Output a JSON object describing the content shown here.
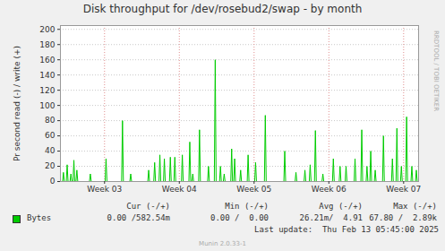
{
  "chart_data": {
    "type": "line",
    "title": "Disk throughput for /dev/rosebud2/swap - by month",
    "y_label": "Pr second read (-) / write (+)",
    "x": [
      2.438,
      2.45,
      2.462,
      2.488,
      2.5,
      2.512,
      2.538,
      2.55,
      2.562,
      2.578,
      2.59,
      2.602,
      2.618,
      2.63,
      2.642,
      2.798,
      2.81,
      2.822,
      3.008,
      3.02,
      3.032,
      3.228,
      3.24,
      3.252,
      3.338,
      3.35,
      3.362,
      3.578,
      3.59,
      3.602,
      3.658,
      3.67,
      3.682,
      3.728,
      3.74,
      3.752,
      3.788,
      3.8,
      3.812,
      3.868,
      3.88,
      3.892,
      3.928,
      3.94,
      3.952,
      4.028,
      4.04,
      4.052,
      4.128,
      4.14,
      4.152,
      4.168,
      4.18,
      4.192,
      4.258,
      4.27,
      4.282,
      4.378,
      4.39,
      4.402,
      4.468,
      4.48,
      4.492,
      4.538,
      4.55,
      4.562,
      4.588,
      4.6,
      4.612,
      4.688,
      4.7,
      4.712,
      4.728,
      4.74,
      4.752,
      4.808,
      4.82,
      4.832,
      4.908,
      4.92,
      4.932,
      5.008,
      5.02,
      5.032,
      5.138,
      5.15,
      5.162,
      5.398,
      5.41,
      5.422,
      5.548,
      5.56,
      5.572,
      5.668,
      5.68,
      5.692,
      5.738,
      5.75,
      5.762,
      5.808,
      5.82,
      5.832,
      5.908,
      5.92,
      5.932,
      6.048,
      6.06,
      6.072,
      6.138,
      6.15,
      6.162,
      6.218,
      6.23,
      6.242,
      6.338,
      6.35,
      6.362,
      6.428,
      6.44,
      6.452,
      6.498,
      6.51,
      6.522,
      6.548,
      6.56,
      6.572,
      6.608,
      6.62,
      6.632,
      6.718,
      6.73,
      6.742,
      6.838,
      6.85,
      6.862,
      6.898,
      6.91,
      6.922,
      6.958,
      6.97,
      6.982,
      7.028,
      7.04,
      7.052,
      7.098,
      7.11,
      7.122,
      7.158,
      7.17,
      7.182
    ],
    "series": [
      {
        "name": "Bytes",
        "color": "#00cc00",
        "values": [
          0,
          12,
          0,
          0,
          22,
          0,
          0,
          10,
          0,
          0,
          28,
          0,
          0,
          15,
          0,
          0,
          10,
          0,
          0,
          30,
          0,
          0,
          80,
          0,
          0,
          10,
          0,
          0,
          15,
          0,
          0,
          25,
          0,
          0,
          35,
          0,
          0,
          30,
          0,
          0,
          32,
          0,
          0,
          32,
          0,
          0,
          35,
          0,
          0,
          52,
          0,
          0,
          10,
          0,
          0,
          68,
          0,
          0,
          20,
          0,
          0,
          160,
          0,
          0,
          20,
          0,
          0,
          10,
          0,
          0,
          43,
          0,
          0,
          30,
          0,
          0,
          15,
          0,
          0,
          35,
          0,
          0,
          25,
          0,
          0,
          87,
          0,
          0,
          40,
          0,
          0,
          12,
          0,
          0,
          15,
          0,
          0,
          22,
          0,
          0,
          67,
          0,
          0,
          10,
          0,
          0,
          30,
          0,
          0,
          20,
          0,
          0,
          20,
          0,
          0,
          30,
          0,
          0,
          68,
          0,
          0,
          20,
          0,
          0,
          40,
          0,
          0,
          15,
          0,
          0,
          60,
          0,
          0,
          30,
          0,
          0,
          70,
          0,
          0,
          20,
          0,
          0,
          85,
          0,
          0,
          20,
          0,
          0,
          15,
          0
        ]
      }
    ],
    "xlim": [
      2.41,
      7.2
    ],
    "xticks": [
      {
        "value": 3,
        "label": "Week 03"
      },
      {
        "value": 4,
        "label": "Week 04"
      },
      {
        "value": 5,
        "label": "Week 05"
      },
      {
        "value": 6,
        "label": "Week 06"
      },
      {
        "value": 7,
        "label": "Week 07"
      }
    ],
    "ylim": [
      0,
      205
    ],
    "yticks": [
      0,
      20,
      40,
      60,
      80,
      100,
      120,
      140,
      160,
      180,
      200
    ],
    "grid": true,
    "legend_table": {
      "headers": [
        "Cur (-/+)",
        "Min (-/+)",
        "Avg (-/+)",
        "Max (-/+)"
      ],
      "cells": [
        [
          "0.00 /582.54m",
          "0.00 /  0.00",
          "26.21m/  4.91",
          "67.80 /  2.89k"
        ]
      ]
    },
    "last_update": "Last update:  Thu Feb 13 05:45:00 2025",
    "side_text": "RRDTOOL / TOBI OETIKER",
    "footer": "Munin 2.0.33-1"
  }
}
